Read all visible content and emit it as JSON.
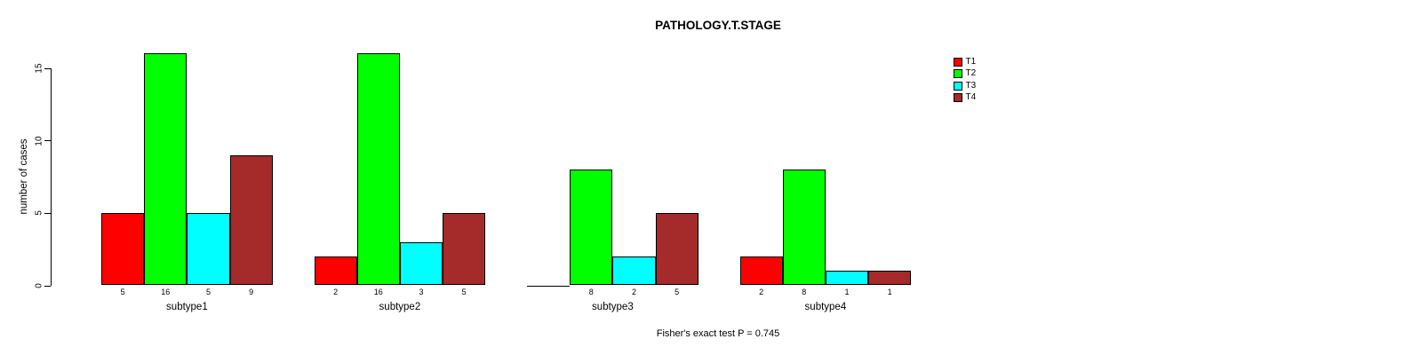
{
  "title": "PATHOLOGY.T.STAGE",
  "caption": "Fisher's exact test P = 0.745",
  "chart_data": {
    "type": "bar",
    "title": "PATHOLOGY.T.STAGE",
    "xlabel": "",
    "ylabel": "number of cases",
    "ylim": [
      0,
      15
    ],
    "yticks": [
      0,
      5,
      10,
      15
    ],
    "grid": false,
    "legend_position": "top-right",
    "categories": [
      "subtype1",
      "subtype2",
      "subtype3",
      "subtype4"
    ],
    "series": [
      {
        "name": "T1",
        "color": "#ff0000",
        "values": [
          5,
          2,
          0,
          2
        ]
      },
      {
        "name": "T2",
        "color": "#00ff00",
        "values": [
          16,
          16,
          8,
          8
        ]
      },
      {
        "name": "T3",
        "color": "#00ffff",
        "values": [
          5,
          3,
          2,
          1
        ]
      },
      {
        "name": "T4",
        "color": "#a52a2a",
        "values": [
          9,
          5,
          5,
          1
        ]
      }
    ],
    "value_labels_under_bars": true,
    "zero_values_unlabeled": true,
    "annotation": "Fisher's exact test P = 0.745"
  }
}
